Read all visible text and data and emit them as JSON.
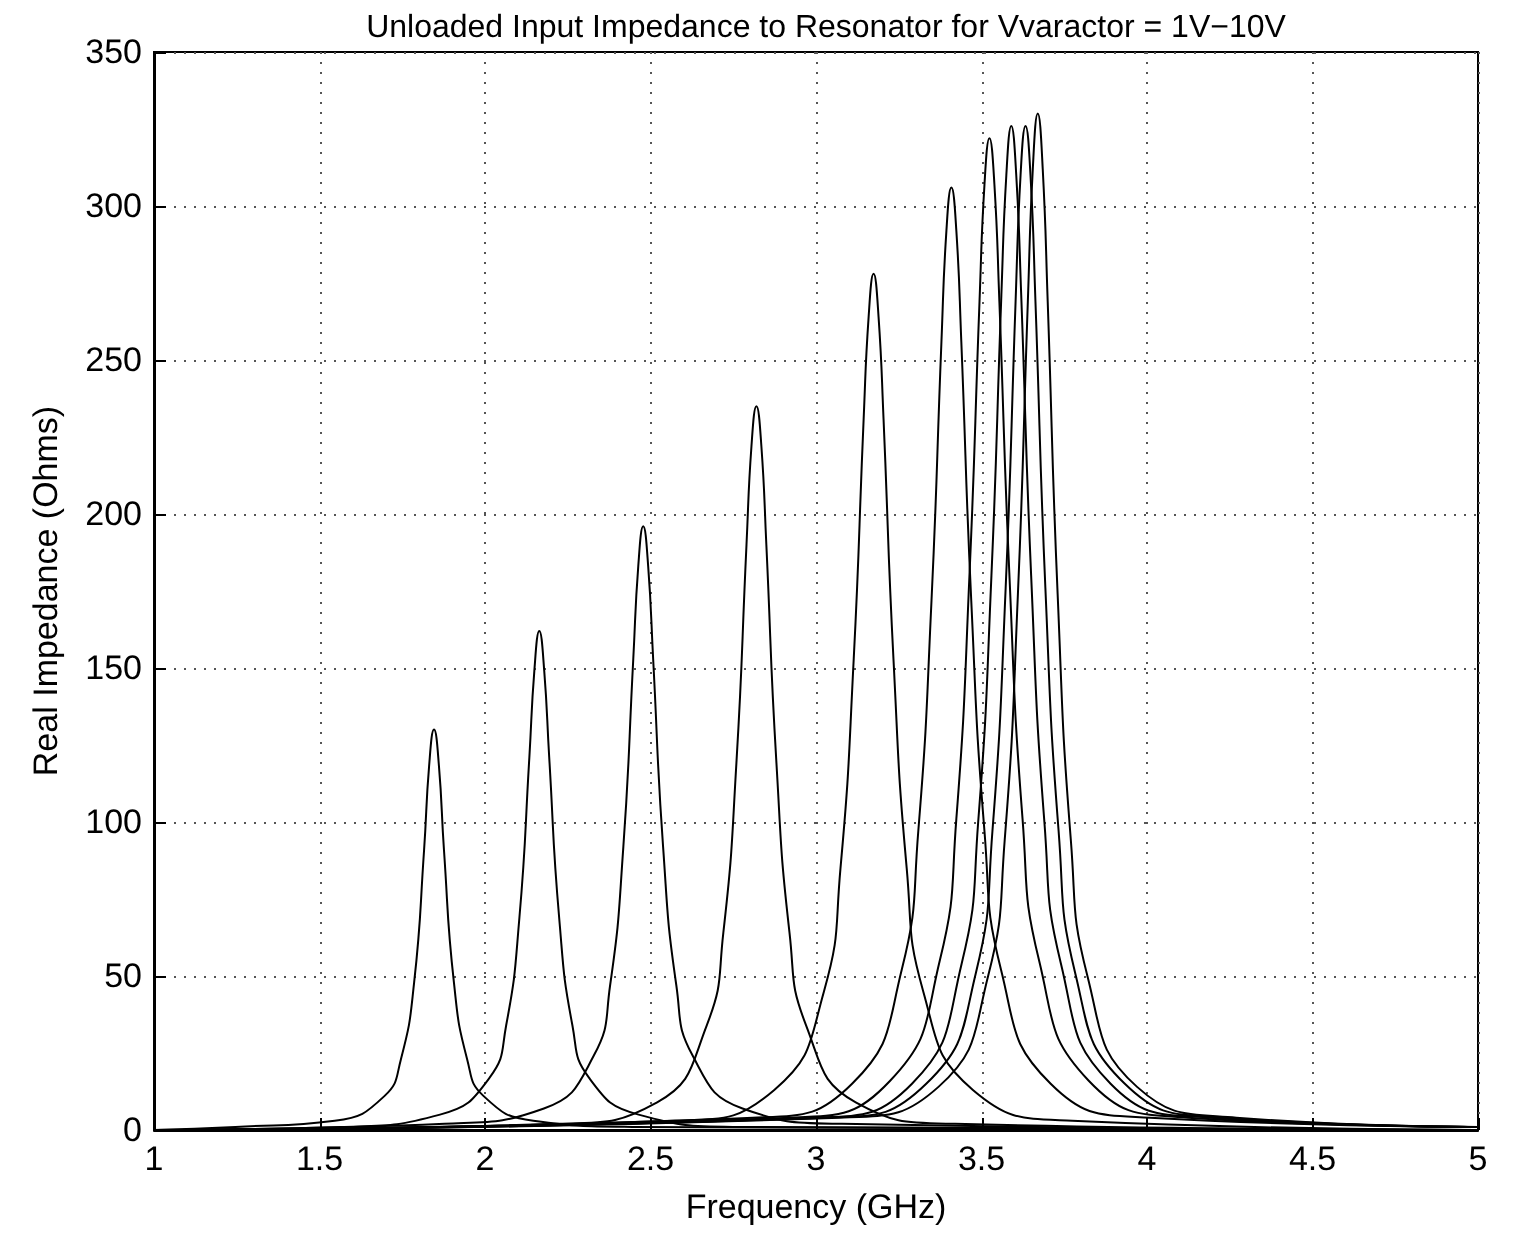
{
  "chart_data": {
    "type": "line",
    "title": "Unloaded Input Impedance to Resonator for Vvaractor = 1V−10V",
    "xlabel": "Frequency (GHz)",
    "ylabel": "Real Impedance (Ohms)",
    "xlim": [
      1,
      5
    ],
    "xticks": [
      1,
      1.5,
      2,
      2.5,
      3,
      3.5,
      4,
      4.5,
      5
    ],
    "ylim": [
      0,
      350
    ],
    "yticks": [
      0,
      50,
      100,
      150,
      200,
      250,
      300,
      350
    ],
    "grid": true,
    "marker": "none",
    "line_style": "solid",
    "series": [
      {
        "color": "#000000",
        "x": [
          1,
          1.246,
          1.546,
          1.696,
          1.746,
          1.786,
          1.816,
          1.831,
          1.846,
          1.861,
          1.876,
          1.906,
          1.946,
          1.996,
          2.146,
          2.446,
          5
        ],
        "values": [
          0,
          1,
          3,
          11,
          23,
          48,
          91,
          118,
          130,
          118,
          91,
          48,
          23,
          11,
          3,
          1,
          0
        ]
      },
      {
        "color": "#000000",
        "x": [
          1,
          1.564,
          1.864,
          2.014,
          2.064,
          2.104,
          2.134,
          2.149,
          2.164,
          2.179,
          2.194,
          2.224,
          2.264,
          2.314,
          2.464,
          2.764,
          5
        ],
        "values": [
          0,
          1,
          5,
          17,
          34,
          69,
          121,
          149,
          162,
          149,
          121,
          69,
          34,
          17,
          5,
          1,
          0
        ]
      },
      {
        "color": "#000000",
        "x": [
          1,
          1.878,
          2.178,
          2.328,
          2.378,
          2.418,
          2.448,
          2.463,
          2.478,
          2.493,
          2.508,
          2.538,
          2.578,
          2.628,
          2.778,
          3.078,
          5
        ],
        "values": [
          0,
          2,
          7,
          24,
          47,
          92,
          153,
          183,
          196,
          183,
          153,
          92,
          47,
          24,
          7,
          2,
          0
        ]
      },
      {
        "color": "#000000",
        "x": [
          1,
          2.22,
          2.52,
          2.67,
          2.72,
          2.76,
          2.79,
          2.805,
          2.82,
          2.835,
          2.85,
          2.88,
          2.92,
          2.97,
          3.12,
          3.42,
          5
        ],
        "values": [
          0,
          2,
          9,
          34,
          64,
          120,
          190,
          222,
          235,
          222,
          190,
          120,
          64,
          34,
          9,
          2,
          0
        ]
      },
      {
        "color": "#000000",
        "x": [
          1,
          2.574,
          2.874,
          3.024,
          3.074,
          3.114,
          3.144,
          3.159,
          3.174,
          3.189,
          3.204,
          3.234,
          3.274,
          3.324,
          3.474,
          3.774,
          5
        ],
        "values": [
          0,
          3,
          13,
          45,
          85,
          153,
          231,
          264,
          278,
          264,
          231,
          153,
          85,
          45,
          13,
          3,
          0
        ]
      },
      {
        "color": "#000000",
        "x": [
          1,
          2.809,
          3.109,
          3.259,
          3.309,
          3.349,
          3.379,
          3.394,
          3.409,
          3.424,
          3.439,
          3.469,
          3.509,
          3.559,
          3.709,
          4.009,
          5
        ],
        "values": [
          0,
          4,
          15,
          52,
          97,
          172,
          256,
          292,
          306,
          292,
          256,
          172,
          97,
          52,
          15,
          4,
          1
        ]
      },
      {
        "color": "#000000",
        "x": [
          1,
          2.924,
          3.224,
          3.374,
          3.424,
          3.464,
          3.494,
          3.509,
          3.524,
          3.539,
          3.554,
          3.584,
          3.624,
          3.674,
          3.824,
          4.124,
          5
        ],
        "values": [
          0,
          4,
          16,
          55,
          101,
          181,
          269,
          307,
          322,
          307,
          269,
          181,
          101,
          55,
          16,
          4,
          1
        ]
      },
      {
        "color": "#000000",
        "x": [
          1,
          2.99,
          3.29,
          3.44,
          3.49,
          3.53,
          3.56,
          3.575,
          3.59,
          3.605,
          3.62,
          3.65,
          3.69,
          3.74,
          3.89,
          4.19,
          5
        ],
        "values": [
          0,
          4,
          15,
          54,
          100,
          180,
          271,
          310,
          326,
          310,
          271,
          180,
          100,
          54,
          15,
          4,
          1
        ]
      },
      {
        "color": "#000000",
        "x": [
          1,
          3.033,
          3.333,
          3.483,
          3.533,
          3.573,
          3.603,
          3.618,
          3.633,
          3.648,
          3.663,
          3.693,
          3.733,
          3.783,
          3.933,
          4.233,
          5
        ],
        "values": [
          0,
          4,
          15,
          51,
          97,
          176,
          269,
          310,
          326,
          310,
          269,
          176,
          97,
          51,
          15,
          4,
          1
        ]
      },
      {
        "color": "#000000",
        "x": [
          1,
          3.07,
          3.37,
          3.52,
          3.57,
          3.61,
          3.64,
          3.655,
          3.67,
          3.685,
          3.7,
          3.73,
          3.77,
          3.82,
          3.97,
          4.27,
          5
        ],
        "values": [
          0,
          4,
          14,
          50,
          94,
          174,
          269,
          312,
          330,
          312,
          269,
          174,
          94,
          50,
          14,
          4,
          1
        ]
      }
    ]
  }
}
